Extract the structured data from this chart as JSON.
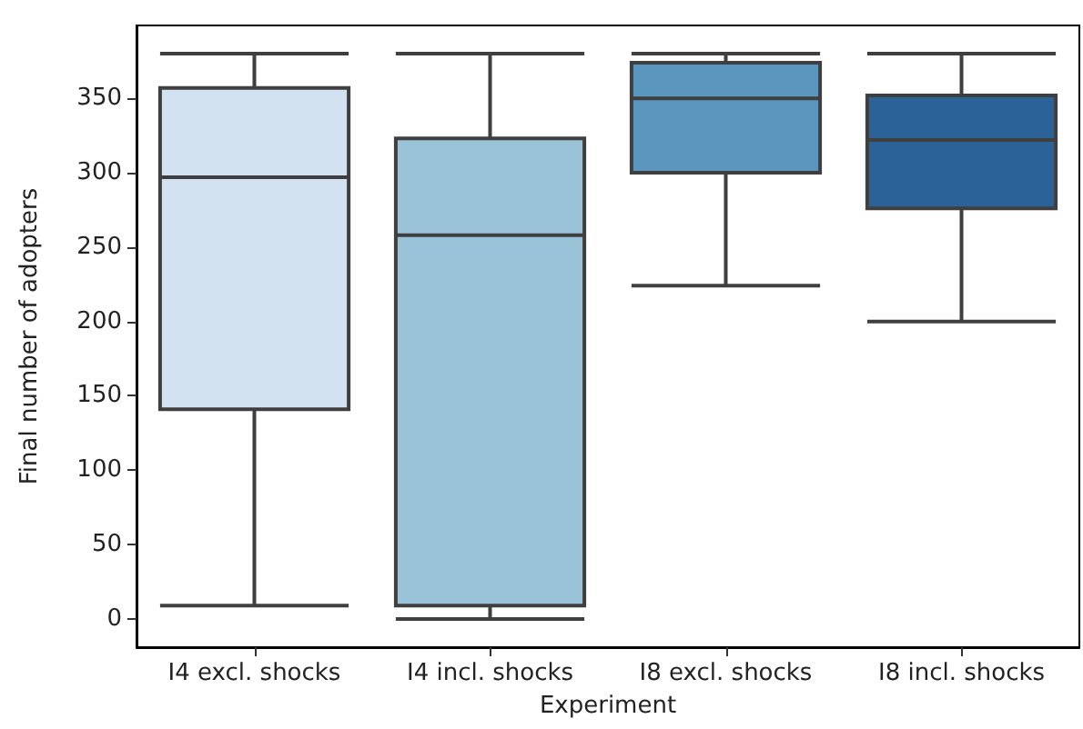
{
  "chart_data": {
    "type": "box",
    "xlabel": "Experiment",
    "ylabel": "Final number of adopters",
    "categories": [
      "I4 excl. shocks",
      "I4 incl. shocks",
      "I8 excl. shocks",
      "I8 incl. shocks"
    ],
    "colors": [
      "#d3e2f0",
      "#9ac2d8",
      "#5b96bf",
      "#2b6399"
    ],
    "boxes": [
      {
        "low": 9,
        "q1": 141,
        "median": 297,
        "q3": 357,
        "high": 380
      },
      {
        "low": 0,
        "q1": 9,
        "median": 258,
        "q3": 323,
        "high": 380
      },
      {
        "low": 224,
        "q1": 300,
        "median": 350,
        "q3": 374,
        "high": 380
      },
      {
        "low": 200,
        "q1": 276,
        "median": 322,
        "q3": 352,
        "high": 380
      }
    ],
    "ylim": [
      -19,
      399
    ],
    "yticks": [
      0,
      50,
      100,
      150,
      200,
      250,
      300,
      350
    ],
    "grid": false
  }
}
